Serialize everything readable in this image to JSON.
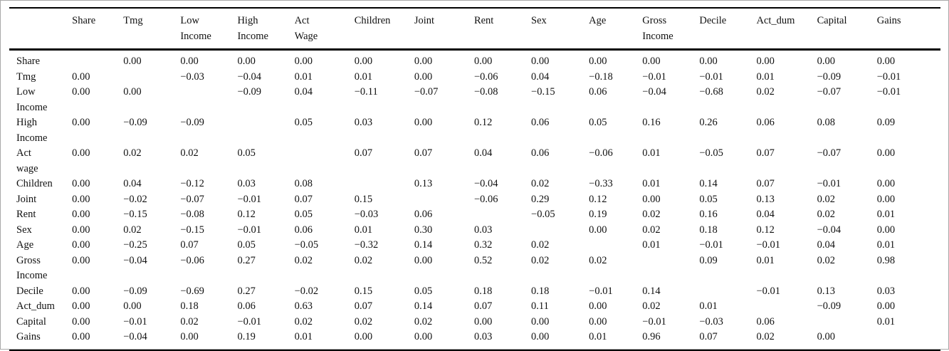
{
  "colors": {
    "rule": "#000000",
    "frame_border": "#a9a9a9",
    "background": "#ffffff",
    "text": "#111111"
  },
  "table": {
    "columns": [
      {
        "lines": [
          "Share"
        ]
      },
      {
        "lines": [
          "Tmg"
        ]
      },
      {
        "lines": [
          "Low",
          "Income"
        ]
      },
      {
        "lines": [
          "High",
          "Income"
        ]
      },
      {
        "lines": [
          "Act",
          "Wage"
        ]
      },
      {
        "lines": [
          "Children"
        ]
      },
      {
        "lines": [
          "Joint"
        ]
      },
      {
        "lines": [
          "Rent"
        ]
      },
      {
        "lines": [
          "Sex"
        ]
      },
      {
        "lines": [
          "Age"
        ]
      },
      {
        "lines": [
          "Gross",
          "Income"
        ]
      },
      {
        "lines": [
          "Decile"
        ]
      },
      {
        "lines": [
          "Act_dum"
        ]
      },
      {
        "lines": [
          "Capital"
        ]
      },
      {
        "lines": [
          "Gains"
        ]
      }
    ],
    "rows": [
      {
        "label_lines": [
          "Share"
        ],
        "values": [
          "",
          "0.00",
          "0.00",
          "0.00",
          "0.00",
          "0.00",
          "0.00",
          "0.00",
          "0.00",
          "0.00",
          "0.00",
          "0.00",
          "0.00",
          "0.00",
          "0.00"
        ]
      },
      {
        "label_lines": [
          "Tmg"
        ],
        "values": [
          "0.00",
          "",
          "−0.03",
          "−0.04",
          "0.01",
          "0.01",
          "0.00",
          "−0.06",
          "0.04",
          "−0.18",
          "−0.01",
          "−0.01",
          "0.01",
          "−0.09",
          "−0.01"
        ]
      },
      {
        "label_lines": [
          "Low",
          "Income"
        ],
        "values": [
          "0.00",
          "0.00",
          "",
          "−0.09",
          "0.04",
          "−0.11",
          "−0.07",
          "−0.08",
          "−0.15",
          "0.06",
          "−0.04",
          "−0.68",
          "0.02",
          "−0.07",
          "−0.01"
        ]
      },
      {
        "label_lines": [
          "High",
          "Income"
        ],
        "values": [
          "0.00",
          "−0.09",
          "−0.09",
          "",
          "0.05",
          "0.03",
          "0.00",
          "0.12",
          "0.06",
          "0.05",
          "0.16",
          "0.26",
          "0.06",
          "0.08",
          "0.09"
        ]
      },
      {
        "label_lines": [
          "Act",
          "wage"
        ],
        "values": [
          "0.00",
          "0.02",
          "0.02",
          "0.05",
          "",
          "0.07",
          "0.07",
          "0.04",
          "0.06",
          "−0.06",
          "0.01",
          "−0.05",
          "0.07",
          "−0.07",
          "0.00"
        ]
      },
      {
        "label_lines": [
          "Children"
        ],
        "values": [
          "0.00",
          "0.04",
          "−0.12",
          "0.03",
          "0.08",
          "",
          "0.13",
          "−0.04",
          "0.02",
          "−0.33",
          "0.01",
          "0.14",
          "0.07",
          "−0.01",
          "0.00"
        ]
      },
      {
        "label_lines": [
          "Joint"
        ],
        "values": [
          "0.00",
          "−0.02",
          "−0.07",
          "−0.01",
          "0.07",
          "0.15",
          "",
          "−0.06",
          "0.29",
          "0.12",
          "0.00",
          "0.05",
          "0.13",
          "0.02",
          "0.00"
        ]
      },
      {
        "label_lines": [
          "Rent"
        ],
        "values": [
          "0.00",
          "−0.15",
          "−0.08",
          "0.12",
          "0.05",
          "−0.03",
          "0.06",
          "",
          "−0.05",
          "0.19",
          "0.02",
          "0.16",
          "0.04",
          "0.02",
          "0.01"
        ]
      },
      {
        "label_lines": [
          "Sex"
        ],
        "values": [
          "0.00",
          "0.02",
          "−0.15",
          "−0.01",
          "0.06",
          "0.01",
          "0.30",
          "0.03",
          "",
          "0.00",
          "0.02",
          "0.18",
          "0.12",
          "−0.04",
          "0.00"
        ]
      },
      {
        "label_lines": [
          "Age"
        ],
        "values": [
          "0.00",
          "−0.25",
          "0.07",
          "0.05",
          "−0.05",
          "−0.32",
          "0.14",
          "0.32",
          "0.02",
          "",
          "0.01",
          "−0.01",
          "−0.01",
          "0.04",
          "0.01"
        ]
      },
      {
        "label_lines": [
          "Gross",
          "Income"
        ],
        "values": [
          "0.00",
          "−0.04",
          "−0.06",
          "0.27",
          "0.02",
          "0.02",
          "0.00",
          "0.52",
          "0.02",
          "0.02",
          "",
          "0.09",
          "0.01",
          "0.02",
          "0.98"
        ]
      },
      {
        "label_lines": [
          "Decile"
        ],
        "values": [
          "0.00",
          "−0.09",
          "−0.69",
          "0.27",
          "−0.02",
          "0.15",
          "0.05",
          "0.18",
          "0.18",
          "−0.01",
          "0.14",
          "",
          "−0.01",
          "0.13",
          "0.03"
        ]
      },
      {
        "label_lines": [
          "Act_dum"
        ],
        "values": [
          "0.00",
          "0.00",
          "0.18",
          "0.06",
          "0.63",
          "0.07",
          "0.14",
          "0.07",
          "0.11",
          "0.00",
          "0.02",
          "0.01",
          "",
          "−0.09",
          "0.00"
        ]
      },
      {
        "label_lines": [
          "Capital"
        ],
        "values": [
          "0.00",
          "−0.01",
          "0.02",
          "−0.01",
          "0.02",
          "0.02",
          "0.02",
          "0.00",
          "0.00",
          "0.00",
          "−0.01",
          "−0.03",
          "0.06",
          "",
          "0.01"
        ]
      },
      {
        "label_lines": [
          "Gains"
        ],
        "values": [
          "0.00",
          "−0.04",
          "0.00",
          "0.19",
          "0.01",
          "0.00",
          "0.00",
          "0.03",
          "0.00",
          "0.01",
          "0.96",
          "0.07",
          "0.02",
          "0.00",
          ""
        ]
      }
    ]
  }
}
